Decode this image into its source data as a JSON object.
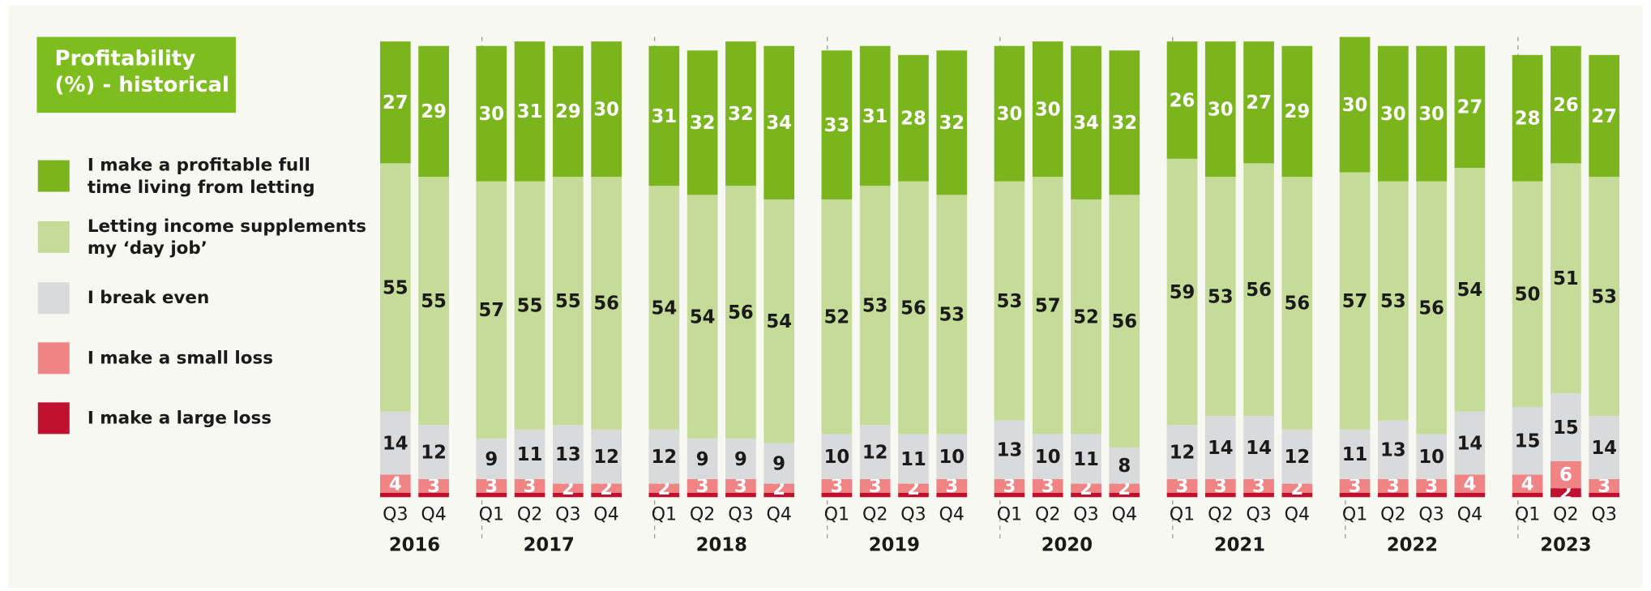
{
  "chart_data": {
    "type": "stacked-bar",
    "title": "Profitability\n(%) - historical",
    "groups": [
      {
        "label": "2016",
        "categories": [
          "Q3",
          "Q4"
        ]
      },
      {
        "label": "2017",
        "categories": [
          "Q1",
          "Q2",
          "Q3",
          "Q4"
        ]
      },
      {
        "label": "2018",
        "categories": [
          "Q1",
          "Q2",
          "Q3",
          "Q4"
        ]
      },
      {
        "label": "2019",
        "categories": [
          "Q1",
          "Q2",
          "Q3",
          "Q4"
        ]
      },
      {
        "label": "2020",
        "categories": [
          "Q1",
          "Q2",
          "Q3",
          "Q4"
        ]
      },
      {
        "label": "2021",
        "categories": [
          "Q1",
          "Q2",
          "Q3",
          "Q4"
        ]
      },
      {
        "label": "2022",
        "categories": [
          "Q1",
          "Q2",
          "Q3",
          "Q4"
        ]
      },
      {
        "label": "2023",
        "categories": [
          "Q1",
          "Q2",
          "Q3"
        ]
      }
    ],
    "series": [
      {
        "name": "I make a profitable full\ntime living from letting",
        "color": "#7ab51d",
        "label_color": "#ffffff",
        "values": [
          27,
          29,
          30,
          31,
          29,
          30,
          31,
          32,
          32,
          34,
          33,
          31,
          28,
          32,
          30,
          30,
          34,
          32,
          26,
          30,
          27,
          29,
          30,
          30,
          30,
          27,
          28,
          26,
          27
        ]
      },
      {
        "name": "Letting income supplements\nmy ‘day job’",
        "color": "#c5dc98",
        "label_color": "#1a1a1a",
        "values": [
          55,
          55,
          57,
          55,
          55,
          56,
          54,
          54,
          56,
          54,
          52,
          53,
          56,
          53,
          53,
          57,
          52,
          56,
          59,
          53,
          56,
          56,
          57,
          53,
          56,
          54,
          50,
          51,
          53
        ]
      },
      {
        "name": "I break even",
        "color": "#d9dadc",
        "label_color": "#1a1a1a",
        "values": [
          14,
          12,
          9,
          11,
          13,
          12,
          12,
          9,
          9,
          9,
          10,
          12,
          11,
          10,
          13,
          10,
          11,
          8,
          12,
          14,
          14,
          12,
          11,
          13,
          10,
          14,
          15,
          15,
          14
        ]
      },
      {
        "name": "I make a small loss",
        "color": "#f08484",
        "label_color": "#ffffff",
        "values": [
          4,
          3,
          3,
          3,
          2,
          2,
          2,
          3,
          3,
          2,
          3,
          3,
          2,
          3,
          3,
          3,
          2,
          2,
          3,
          3,
          3,
          2,
          3,
          3,
          3,
          4,
          4,
          6,
          3
        ]
      },
      {
        "name": "I make a large loss",
        "color": "#c0102f",
        "label_color": "#ffffff",
        "values": [
          1,
          1,
          1,
          1,
          1,
          1,
          1,
          1,
          1,
          1,
          1,
          1,
          1,
          1,
          1,
          1,
          1,
          1,
          1,
          1,
          1,
          1,
          1,
          1,
          1,
          1,
          1,
          2,
          1
        ]
      }
    ]
  }
}
